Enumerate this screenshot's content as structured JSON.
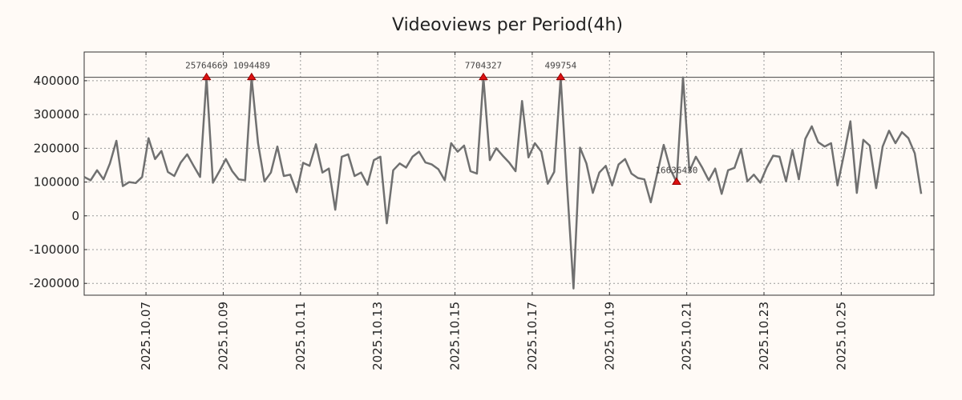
{
  "chart_data": {
    "type": "line",
    "title": "Videoviews per Period(4h)",
    "xlabel": "",
    "ylabel": "",
    "ylim": [
      -235000,
      485000
    ],
    "cap_value": 410000,
    "yticks": [
      400000,
      300000,
      200000,
      100000,
      0,
      -100000,
      -200000
    ],
    "ytick_labels": [
      "400000",
      "300000",
      "200000",
      "100000",
      "0",
      "-100000",
      "-200000"
    ],
    "x_range_days": [
      0,
      22
    ],
    "xtick_days": [
      1.6,
      3.6,
      5.6,
      7.6,
      9.6,
      11.6,
      13.6,
      15.6,
      17.6,
      19.6
    ],
    "xtick_labels": [
      "2025.10.07",
      "2025.10.09",
      "2025.10.11",
      "2025.10.13",
      "2025.10.15",
      "2025.10.17",
      "2025.10.19",
      "2025.10.21",
      "2025.10.23",
      "2025.10.25"
    ],
    "series": [
      {
        "name": "Videoviews",
        "color": "#707070",
        "step_days": 0.1667,
        "values": [
          115000,
          105000,
          135000,
          108000,
          155000,
          222000,
          88000,
          100000,
          97000,
          115000,
          230000,
          168000,
          192000,
          130000,
          118000,
          158000,
          182000,
          148000,
          115000,
          410000,
          98000,
          132000,
          168000,
          132000,
          108000,
          105000,
          410000,
          215000,
          102000,
          128000,
          205000,
          118000,
          122000,
          70000,
          157000,
          148000,
          212000,
          128000,
          140000,
          18000,
          175000,
          182000,
          118000,
          128000,
          92000,
          165000,
          175000,
          -22000,
          135000,
          155000,
          143000,
          175000,
          190000,
          158000,
          152000,
          138000,
          105000,
          215000,
          190000,
          208000,
          132000,
          125000,
          410000,
          165000,
          200000,
          178000,
          158000,
          132000,
          340000,
          173000,
          215000,
          190000,
          95000,
          130000,
          410000,
          88000,
          -215000,
          202000,
          155000,
          68000,
          128000,
          148000,
          90000,
          152000,
          168000,
          125000,
          112000,
          108000,
          40000,
          125000,
          210000,
          140000,
          100000,
          410000,
          132000,
          175000,
          142000,
          105000,
          140000,
          65000,
          135000,
          142000,
          198000,
          102000,
          122000,
          98000,
          143000,
          178000,
          175000,
          102000,
          195000,
          108000,
          228000,
          265000,
          218000,
          205000,
          215000,
          90000,
          182000,
          280000,
          68000,
          225000,
          208000,
          82000,
          205000,
          252000,
          215000,
          248000,
          230000,
          185000,
          65000
        ]
      }
    ],
    "annotations": [
      {
        "index": 19,
        "label": "25764669"
      },
      {
        "index": 26,
        "label": "1094489"
      },
      {
        "index": 62,
        "label": "7704327"
      },
      {
        "index": 74,
        "label": "499754"
      },
      {
        "index": 92,
        "label": "16636430"
      }
    ]
  }
}
